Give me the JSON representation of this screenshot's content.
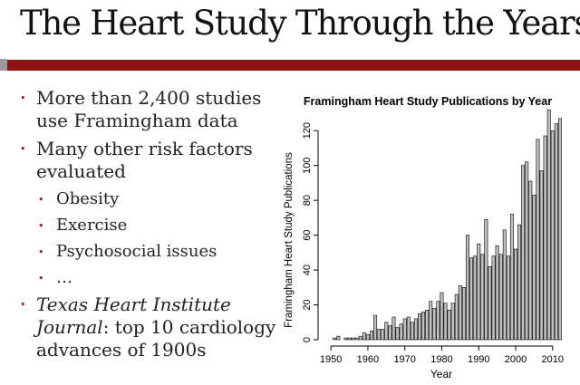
{
  "slide": {
    "title": "The Heart Study Through the Years",
    "bullets": [
      {
        "text": "More than 2,400 studies use Framingham data"
      },
      {
        "text": "Many other risk factors evaluated"
      },
      {
        "text": "Obesity"
      },
      {
        "text": "Exercise"
      },
      {
        "text": "Psychosocial issues"
      },
      {
        "text": "…"
      },
      {
        "italic": "Texas Heart Institute Journal",
        "text": ": top 10 cardiology advances of 1900s"
      }
    ]
  },
  "colors": {
    "title_bar": "#8a1414",
    "bullet": "#8a1414",
    "bar_fill": "#c0c0c0",
    "bar_stroke": "#000000"
  },
  "chart_data": {
    "type": "bar",
    "title": "Framingham Heart Study Publications by Year",
    "xlabel": "Year",
    "ylabel": "Framingham Heart Study Publications",
    "xlim": [
      1948,
      2013
    ],
    "ylim": [
      0,
      130
    ],
    "x_ticks": [
      1950,
      1960,
      1970,
      1980,
      1990,
      2000,
      2010
    ],
    "y_ticks": [
      0,
      20,
      40,
      60,
      80,
      100,
      120
    ],
    "grid": false,
    "categories": [
      1950,
      1951,
      1952,
      1953,
      1954,
      1955,
      1956,
      1957,
      1958,
      1959,
      1960,
      1961,
      1962,
      1963,
      1964,
      1965,
      1966,
      1967,
      1968,
      1969,
      1970,
      1971,
      1972,
      1973,
      1974,
      1975,
      1976,
      1977,
      1978,
      1979,
      1980,
      1981,
      1982,
      1983,
      1984,
      1985,
      1986,
      1987,
      1988,
      1989,
      1990,
      1991,
      1992,
      1993,
      1994,
      1995,
      1996,
      1997,
      1998,
      1999,
      2000,
      2001,
      2002,
      2003,
      2004,
      2005,
      2006,
      2007,
      2008,
      2009,
      2010,
      2011,
      2012
    ],
    "values": [
      0,
      1,
      2,
      0,
      1,
      1,
      1,
      1,
      2,
      4,
      3,
      5,
      14,
      6,
      6,
      10,
      8,
      13,
      7,
      9,
      12,
      13,
      10,
      12,
      15,
      16,
      17,
      22,
      18,
      22,
      27,
      21,
      17,
      21,
      26,
      31,
      30,
      60,
      47,
      48,
      55,
      49,
      69,
      42,
      48,
      54,
      49,
      63,
      48,
      72,
      52,
      66,
      100,
      102,
      91,
      83,
      115,
      97,
      117,
      132,
      120,
      124,
      127
    ]
  }
}
